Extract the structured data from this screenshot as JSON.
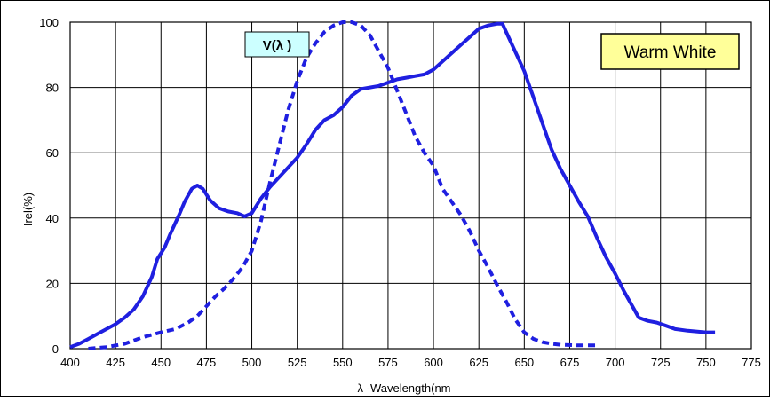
{
  "chart_data": {
    "type": "line",
    "title": "",
    "xlabel": "λ -Wavelength(nm",
    "ylabel": "Irel(%)",
    "xlim": [
      400,
      775
    ],
    "ylim": [
      0,
      100
    ],
    "x_ticks": [
      400,
      425,
      450,
      475,
      500,
      525,
      550,
      575,
      600,
      625,
      650,
      675,
      700,
      725,
      750,
      775
    ],
    "y_ticks": [
      0,
      20,
      40,
      60,
      80,
      100
    ],
    "x_tick_labels": [
      "400",
      "425",
      "450",
      "475",
      "500",
      "525",
      "550",
      "575",
      "600",
      "625",
      "650",
      "675",
      "700",
      "725",
      "750",
      "775"
    ],
    "y_tick_labels": [
      "0",
      "20",
      "40",
      "60",
      "80",
      "100"
    ],
    "grid": true,
    "colors": {
      "line": "#1f1fe0",
      "legend_bg": "#ffff99",
      "vlabel_bg": "#ccffff"
    },
    "legend_box": "Warm White",
    "v_label": "V(λ )",
    "series": [
      {
        "style": "solid",
        "points": [
          [
            400,
            0.5
          ],
          [
            405,
            1.5
          ],
          [
            410,
            3
          ],
          [
            415,
            4.5
          ],
          [
            420,
            6
          ],
          [
            425,
            7.5
          ],
          [
            430,
            9.5
          ],
          [
            435,
            12
          ],
          [
            440,
            16
          ],
          [
            445,
            22
          ],
          [
            448,
            27.5
          ],
          [
            452,
            31
          ],
          [
            455,
            35
          ],
          [
            460,
            41
          ],
          [
            463,
            45
          ],
          [
            467,
            49
          ],
          [
            470,
            50
          ],
          [
            473,
            49
          ],
          [
            477,
            45.5
          ],
          [
            482,
            43
          ],
          [
            487,
            42
          ],
          [
            492,
            41.5
          ],
          [
            496,
            40.5
          ],
          [
            500,
            41.5
          ],
          [
            505,
            46
          ],
          [
            510,
            49.5
          ],
          [
            515,
            52.5
          ],
          [
            520,
            55.5
          ],
          [
            525,
            58.5
          ],
          [
            530,
            62.5
          ],
          [
            535,
            67
          ],
          [
            540,
            70
          ],
          [
            545,
            71.5
          ],
          [
            550,
            74
          ],
          [
            555,
            77.5
          ],
          [
            560,
            79.5
          ],
          [
            565,
            80
          ],
          [
            570,
            80.5
          ],
          [
            575,
            81.5
          ],
          [
            580,
            82.5
          ],
          [
            585,
            83
          ],
          [
            590,
            83.5
          ],
          [
            595,
            84
          ],
          [
            600,
            85.5
          ],
          [
            605,
            88
          ],
          [
            610,
            90.5
          ],
          [
            615,
            93
          ],
          [
            620,
            95.5
          ],
          [
            625,
            98
          ],
          [
            630,
            99
          ],
          [
            635,
            99.5
          ],
          [
            638,
            99.5
          ],
          [
            640,
            97
          ],
          [
            645,
            91
          ],
          [
            650,
            85
          ],
          [
            655,
            77
          ],
          [
            660,
            69
          ],
          [
            665,
            61
          ],
          [
            670,
            55
          ],
          [
            675,
            50
          ],
          [
            680,
            45
          ],
          [
            685,
            40.5
          ],
          [
            690,
            34
          ],
          [
            695,
            28
          ],
          [
            700,
            23
          ],
          [
            705,
            17.5
          ],
          [
            710,
            12.5
          ],
          [
            713,
            9.5
          ],
          [
            718,
            8.5
          ],
          [
            723,
            8
          ],
          [
            728,
            7
          ],
          [
            733,
            6
          ],
          [
            740,
            5.5
          ],
          [
            750,
            5
          ],
          [
            755,
            5
          ]
        ]
      },
      {
        "style": "dashed",
        "points": [
          [
            410,
            0
          ],
          [
            420,
            0.5
          ],
          [
            430,
            1.5
          ],
          [
            440,
            3.5
          ],
          [
            450,
            5
          ],
          [
            458,
            6
          ],
          [
            465,
            8
          ],
          [
            470,
            10
          ],
          [
            475,
            13
          ],
          [
            480,
            16
          ],
          [
            485,
            18.5
          ],
          [
            490,
            21.5
          ],
          [
            495,
            25
          ],
          [
            500,
            30
          ],
          [
            505,
            39
          ],
          [
            510,
            51
          ],
          [
            515,
            62
          ],
          [
            520,
            73
          ],
          [
            525,
            82
          ],
          [
            530,
            89
          ],
          [
            535,
            93.5
          ],
          [
            540,
            97
          ],
          [
            545,
            99
          ],
          [
            550,
            100
          ],
          [
            555,
            100
          ],
          [
            560,
            99
          ],
          [
            565,
            96
          ],
          [
            570,
            91
          ],
          [
            575,
            86
          ],
          [
            580,
            79
          ],
          [
            585,
            72
          ],
          [
            590,
            65
          ],
          [
            595,
            60
          ],
          [
            600,
            56
          ],
          [
            605,
            49
          ],
          [
            610,
            45
          ],
          [
            615,
            41
          ],
          [
            620,
            36
          ],
          [
            625,
            30
          ],
          [
            630,
            25
          ],
          [
            635,
            19.5
          ],
          [
            640,
            14.5
          ],
          [
            645,
            9
          ],
          [
            650,
            5
          ],
          [
            655,
            3
          ],
          [
            660,
            2
          ],
          [
            665,
            1.5
          ],
          [
            670,
            1.2
          ],
          [
            680,
            1
          ],
          [
            690,
            1
          ]
        ]
      }
    ]
  }
}
